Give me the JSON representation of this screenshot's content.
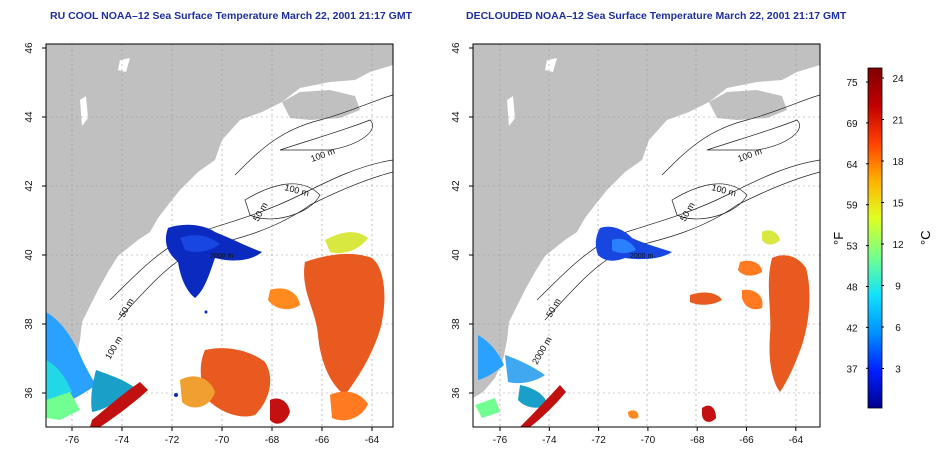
{
  "panels": [
    {
      "title": "RU COOL NOAA–12 Sea Surface Temperature March 22, 2001 21:17 GMT",
      "contour_labels": [
        "100 m",
        "100 m",
        "50 m",
        "2000 m",
        "50 m",
        "100 m"
      ]
    },
    {
      "title": "DECLOUDED NOAA–12 Sea Surface Temperature March 22, 2001 21:17 GMT",
      "contour_labels": [
        "100 m",
        "100 m",
        "50 m",
        "2000 m",
        "50 m",
        "2000 m"
      ]
    }
  ],
  "axes": {
    "x_ticks": [
      "-76",
      "-74",
      "-72",
      "-70",
      "-68",
      "-66",
      "-64"
    ],
    "y_ticks": [
      "36",
      "38",
      "40",
      "42",
      "44",
      "46"
    ]
  },
  "colorbar": {
    "fahrenheit_ticks": [
      "75",
      "69",
      "64",
      "59",
      "53",
      "48",
      "42",
      "37"
    ],
    "celsius_ticks": [
      "24",
      "21",
      "18",
      "15",
      "12",
      "9",
      "6",
      "3"
    ],
    "fahrenheit_label": "°F",
    "celsius_label": "°C"
  },
  "colors": {
    "land": "#c0c0c0",
    "title": "#1f2fa0",
    "scale": [
      "#00008f",
      "#0020ff",
      "#0090ff",
      "#10e0ff",
      "#70ff90",
      "#e0ff20",
      "#ffb000",
      "#ff4000",
      "#c00000",
      "#7f0000"
    ]
  }
}
